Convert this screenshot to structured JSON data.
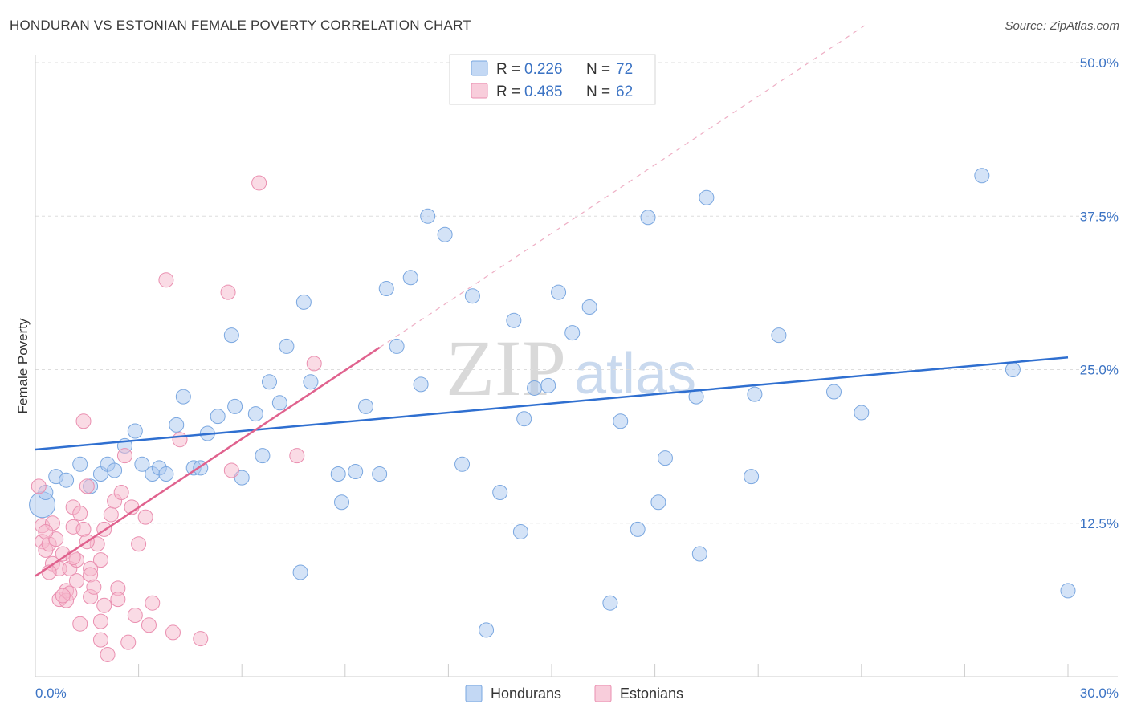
{
  "title": "HONDURAN VS ESTONIAN FEMALE POVERTY CORRELATION CHART",
  "source": "Source: ZipAtlas.com",
  "watermark": {
    "part1": "ZIP",
    "part2": "atlas"
  },
  "colors": {
    "hondurans": "#a9c8f0",
    "hondurans_line": "#2f6fd0",
    "estonians": "#f5b8cc",
    "estonians_line": "#e0628e",
    "tick": "#3b73c4",
    "grid": "#dddddd"
  },
  "legend": {
    "rows": [
      {
        "series": "Hondurans",
        "r_label": "R =",
        "r_value": "0.226",
        "n_label": "N =",
        "n_value": "72"
      },
      {
        "series": "Estonians",
        "r_label": "R =",
        "r_value": "0.485",
        "n_label": "N =",
        "n_value": "62"
      }
    ]
  },
  "chart_data": {
    "type": "scatter",
    "title": "HONDURAN VS ESTONIAN FEMALE POVERTY CORRELATION CHART",
    "xlabel": "",
    "ylabel": "Female Poverty",
    "xlim": [
      0,
      30
    ],
    "ylim": [
      0,
      50
    ],
    "x_tick_labels": [
      "0.0%",
      "30.0%"
    ],
    "y_ticks": [
      12.5,
      25.0,
      37.5,
      50.0
    ],
    "y_tick_labels": [
      "12.5%",
      "25.0%",
      "37.5%",
      "50.0%"
    ],
    "grid": true,
    "legend_position": "bottom-center",
    "series": [
      {
        "name": "Hondurans",
        "trend": {
          "x": [
            0,
            30
          ],
          "y": [
            18.5,
            26.0
          ]
        },
        "points": [
          [
            0.2,
            14.0
          ],
          [
            0.3,
            15.0
          ],
          [
            0.6,
            16.3
          ],
          [
            0.9,
            16.0
          ],
          [
            1.3,
            17.3
          ],
          [
            1.6,
            15.5
          ],
          [
            1.9,
            16.5
          ],
          [
            2.1,
            17.3
          ],
          [
            2.3,
            16.8
          ],
          [
            2.6,
            18.8
          ],
          [
            2.9,
            20.0
          ],
          [
            3.1,
            17.3
          ],
          [
            3.4,
            16.5
          ],
          [
            3.6,
            17.0
          ],
          [
            3.8,
            16.5
          ],
          [
            4.1,
            20.5
          ],
          [
            4.3,
            22.8
          ],
          [
            4.6,
            17.0
          ],
          [
            4.8,
            17.0
          ],
          [
            5.0,
            19.8
          ],
          [
            5.3,
            21.2
          ],
          [
            5.7,
            27.8
          ],
          [
            5.8,
            22.0
          ],
          [
            6.0,
            16.2
          ],
          [
            6.4,
            21.4
          ],
          [
            6.6,
            18.0
          ],
          [
            6.8,
            24.0
          ],
          [
            7.1,
            22.3
          ],
          [
            7.3,
            26.9
          ],
          [
            7.7,
            8.5
          ],
          [
            7.8,
            30.5
          ],
          [
            8.0,
            24.0
          ],
          [
            8.8,
            16.5
          ],
          [
            8.9,
            14.2
          ],
          [
            9.3,
            16.7
          ],
          [
            9.6,
            22.0
          ],
          [
            10.0,
            16.5
          ],
          [
            10.2,
            31.6
          ],
          [
            10.5,
            26.9
          ],
          [
            10.9,
            32.5
          ],
          [
            11.2,
            23.8
          ],
          [
            11.4,
            37.5
          ],
          [
            11.9,
            36.0
          ],
          [
            12.4,
            17.3
          ],
          [
            12.7,
            31.0
          ],
          [
            13.1,
            3.8
          ],
          [
            13.5,
            15.0
          ],
          [
            13.9,
            29.0
          ],
          [
            14.1,
            11.8
          ],
          [
            14.2,
            21.0
          ],
          [
            14.5,
            23.5
          ],
          [
            14.9,
            23.7
          ],
          [
            15.2,
            31.3
          ],
          [
            15.6,
            28.0
          ],
          [
            16.1,
            30.1
          ],
          [
            16.7,
            6.0
          ],
          [
            17.0,
            20.8
          ],
          [
            17.5,
            12.0
          ],
          [
            17.8,
            37.4
          ],
          [
            18.1,
            14.2
          ],
          [
            18.3,
            17.8
          ],
          [
            19.3,
            10.0
          ],
          [
            19.5,
            39.0
          ],
          [
            20.9,
            23.0
          ],
          [
            20.8,
            16.3
          ],
          [
            21.6,
            27.8
          ],
          [
            23.2,
            23.2
          ],
          [
            24.0,
            21.5
          ],
          [
            27.5,
            40.8
          ],
          [
            28.4,
            25.0
          ],
          [
            30.0,
            7.0
          ],
          [
            19.2,
            22.8
          ]
        ]
      },
      {
        "name": "Estonians",
        "trend": {
          "x": [
            0,
            10.0
          ],
          "y": [
            8.2,
            26.8
          ]
        },
        "points": [
          [
            0.1,
            15.5
          ],
          [
            0.2,
            12.3
          ],
          [
            0.2,
            11.0
          ],
          [
            0.3,
            10.3
          ],
          [
            0.4,
            10.8
          ],
          [
            0.5,
            12.5
          ],
          [
            0.5,
            9.2
          ],
          [
            0.6,
            11.2
          ],
          [
            0.7,
            8.8
          ],
          [
            0.7,
            6.3
          ],
          [
            0.8,
            10.0
          ],
          [
            0.9,
            7.0
          ],
          [
            0.9,
            6.2
          ],
          [
            1.0,
            8.8
          ],
          [
            1.0,
            6.8
          ],
          [
            1.1,
            12.2
          ],
          [
            1.1,
            13.8
          ],
          [
            1.2,
            7.8
          ],
          [
            1.2,
            9.5
          ],
          [
            1.3,
            4.3
          ],
          [
            1.3,
            13.3
          ],
          [
            1.4,
            20.8
          ],
          [
            1.4,
            12.0
          ],
          [
            1.5,
            15.5
          ],
          [
            1.6,
            8.8
          ],
          [
            1.6,
            8.3
          ],
          [
            1.6,
            6.5
          ],
          [
            1.7,
            7.3
          ],
          [
            1.8,
            10.8
          ],
          [
            1.9,
            3.0
          ],
          [
            1.9,
            9.5
          ],
          [
            2.0,
            12.0
          ],
          [
            2.0,
            5.8
          ],
          [
            2.1,
            1.8
          ],
          [
            2.2,
            13.2
          ],
          [
            2.3,
            14.3
          ],
          [
            2.4,
            7.2
          ],
          [
            2.5,
            15.0
          ],
          [
            2.6,
            18.0
          ],
          [
            2.8,
            13.8
          ],
          [
            2.9,
            5.0
          ],
          [
            3.0,
            10.8
          ],
          [
            3.2,
            13.0
          ],
          [
            3.3,
            4.2
          ],
          [
            3.4,
            6.0
          ],
          [
            3.8,
            32.3
          ],
          [
            4.0,
            3.6
          ],
          [
            4.2,
            19.3
          ],
          [
            4.8,
            3.1
          ],
          [
            5.6,
            31.3
          ],
          [
            5.7,
            16.8
          ],
          [
            6.5,
            40.2
          ],
          [
            7.6,
            18.0
          ],
          [
            8.1,
            25.5
          ],
          [
            0.3,
            11.8
          ],
          [
            0.8,
            6.6
          ],
          [
            1.5,
            11.0
          ],
          [
            2.4,
            6.3
          ],
          [
            1.1,
            9.7
          ],
          [
            0.4,
            8.5
          ],
          [
            1.9,
            4.5
          ],
          [
            2.7,
            2.8
          ]
        ]
      }
    ]
  }
}
